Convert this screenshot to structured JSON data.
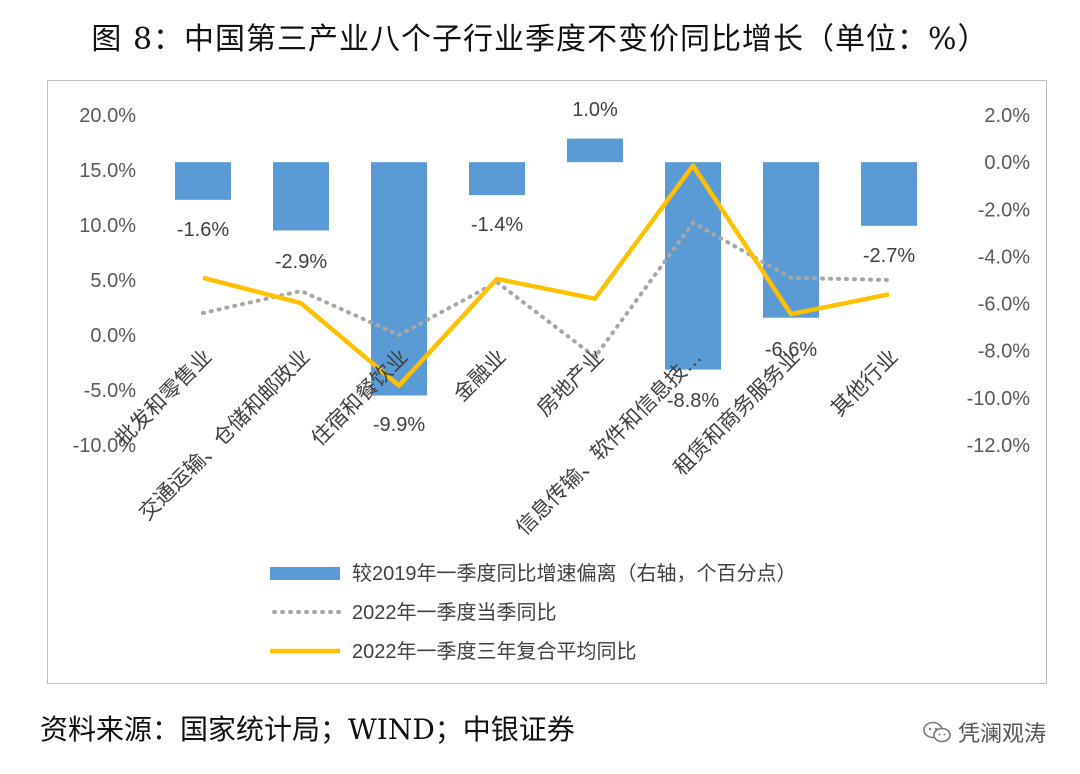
{
  "title": "图 8：中国第三产业八个子行业季度不变价同比增长（单位：%）",
  "source": "资料来源：国家统计局；WIND；中银证券",
  "watermark": "凭澜观涛",
  "chart_data": {
    "type": "bar",
    "categories": [
      "批发和零售业",
      "交通运输、仓储和邮政业",
      "住宿和餐饮业",
      "金融业",
      "房地产业",
      "信息传输、软件和信息技…",
      "租赁和商务服务业",
      "其他行业"
    ],
    "series": [
      {
        "name": "较2019年一季度同比增速偏离（右轴，个百分点）",
        "type": "bar",
        "axis": "right",
        "values": [
          -1.6,
          -2.9,
          -9.9,
          -1.4,
          1.0,
          -8.8,
          -6.6,
          -2.7
        ],
        "labels": [
          "-1.6%",
          "-2.9%",
          "-9.9%",
          "-1.4%",
          "1.0%",
          "-8.8%",
          "-6.6%",
          "-2.7%"
        ]
      },
      {
        "name": "2022年一季度当季同比",
        "type": "line",
        "style": "dotted",
        "axis": "left",
        "values": [
          2.0,
          4.0,
          0.0,
          4.8,
          -2.0,
          10.2,
          5.2,
          5.0
        ]
      },
      {
        "name": "2022年一季度三年复合平均同比",
        "type": "line",
        "style": "solid",
        "axis": "left",
        "values": [
          5.2,
          2.9,
          -4.6,
          5.1,
          3.3,
          15.4,
          1.9,
          3.7
        ]
      }
    ],
    "left_axis": {
      "range": [
        -10,
        20
      ],
      "ticks": [
        "-10.0%",
        "-5.0%",
        "0.0%",
        "5.0%",
        "10.0%",
        "15.0%",
        "20.0%"
      ]
    },
    "right_axis": {
      "range": [
        -12,
        2
      ],
      "ticks": [
        "-12.0%",
        "-10.0%",
        "-8.0%",
        "-6.0%",
        "-4.0%",
        "-2.0%",
        "0.0%",
        "2.0%"
      ]
    },
    "grid": false,
    "legend_position": "bottom",
    "colors": {
      "bar": "#5B9BD5",
      "dotted": "#A6A6A6",
      "solid": "#FFC000"
    }
  }
}
